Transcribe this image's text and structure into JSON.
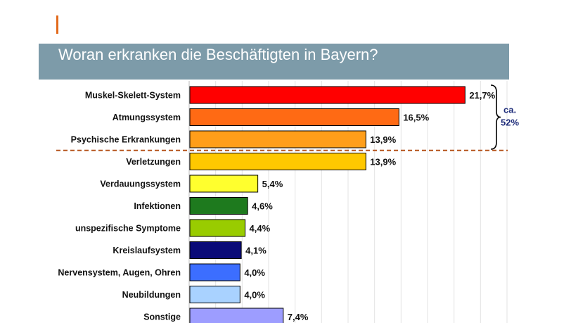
{
  "title": "Woran erkranken die Beschäftigten in Bayern?",
  "colors": {
    "title_bar": "#7d9ba9",
    "accent": "#e26a1c",
    "divider": "#b5531c",
    "brace": "#1f2d7a"
  },
  "chart_data": {
    "type": "bar",
    "orientation": "horizontal",
    "categories": [
      "Muskel-Skelett-System",
      "Atmungssystem",
      "Psychische Erkrankungen",
      "Verletzungen",
      "Verdauungssystem",
      "Infektionen",
      "unspezifische Symptome",
      "Kreislaufsystem",
      "Nervensystem, Augen, Ohren",
      "Neubildungen",
      "Sonstige"
    ],
    "values": [
      21.7,
      16.5,
      13.9,
      13.9,
      5.4,
      4.6,
      4.4,
      4.1,
      4.0,
      4.0,
      7.4
    ],
    "value_labels": [
      "21,7%",
      "16,5%",
      "13,9%",
      "13,9%",
      "5,4%",
      "4,6%",
      "4,4%",
      "4,1%",
      "4,0%",
      "4,0%",
      "7,4%"
    ],
    "bar_colors": [
      "#ff0000",
      "#ff6a14",
      "#ff9e1a",
      "#ffc800",
      "#ffff2e",
      "#1e7a1e",
      "#99cc00",
      "#0a0a78",
      "#3c6eff",
      "#a9d2ff",
      "#9d9dff"
    ],
    "xlim": [
      0,
      25
    ],
    "grid": true,
    "annotation": {
      "line1": "ca.",
      "line2": "52%",
      "brackets_categories": [
        0,
        1,
        2
      ]
    },
    "divider_after_category_index": 2
  }
}
